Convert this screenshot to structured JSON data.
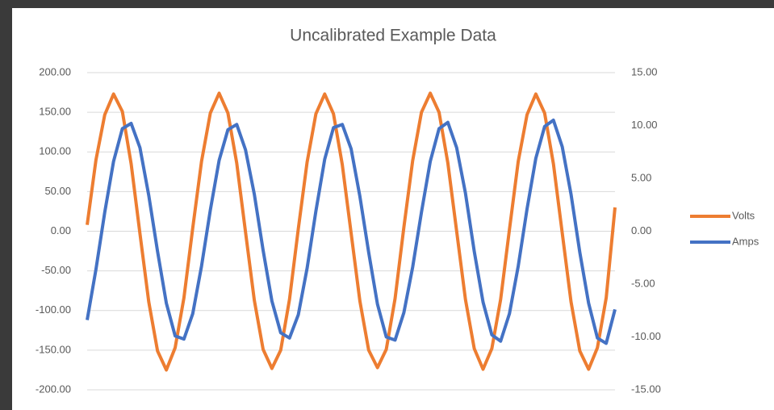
{
  "chart_data": {
    "type": "line",
    "title": "Uncalibrated Example Data",
    "series": [
      {
        "name": "Volts",
        "color": "#ed7d31",
        "axis": "y",
        "values": [
          8,
          90,
          147,
          173,
          151,
          85,
          -3,
          -89,
          -151,
          -175,
          -147,
          -84,
          4,
          88,
          149,
          174,
          149,
          86,
          -1,
          -87,
          -149,
          -173,
          -150,
          -86,
          3,
          87,
          148,
          173,
          148,
          84,
          -2,
          -88,
          -150,
          -172,
          -149,
          -85,
          5,
          89,
          150,
          174,
          150,
          86,
          0,
          -86,
          -148,
          -174,
          -148,
          -86,
          2,
          88,
          147,
          173,
          149,
          85,
          -2,
          -89,
          -151,
          -174,
          -147,
          -84,
          30
        ]
      },
      {
        "name": "Amps",
        "color": "#4472c4",
        "axis": "y2",
        "values": [
          -8.4,
          -3.6,
          1.8,
          6.6,
          9.7,
          10.2,
          7.9,
          3.4,
          -1.9,
          -6.8,
          -9.9,
          -10.2,
          -7.8,
          -3.3,
          2.0,
          6.7,
          9.6,
          10.1,
          7.7,
          3.5,
          -1.8,
          -6.6,
          -9.6,
          -10.1,
          -7.9,
          -3.5,
          1.9,
          6.8,
          9.8,
          10.1,
          7.8,
          3.3,
          -2.0,
          -6.9,
          -10.0,
          -10.3,
          -7.7,
          -3.4,
          1.8,
          6.6,
          9.7,
          10.3,
          7.9,
          3.6,
          -1.9,
          -6.7,
          -9.8,
          -10.4,
          -7.8,
          -3.3,
          2.1,
          6.9,
          9.9,
          10.5,
          8.0,
          3.5,
          -2.0,
          -6.8,
          -10.1,
          -10.6,
          -7.4
        ]
      }
    ],
    "ylim": [
      -200,
      200
    ],
    "yticks": [
      {
        "value": -200,
        "label": "-200.00"
      },
      {
        "value": -150,
        "label": "-150.00"
      },
      {
        "value": -100,
        "label": "-100.00"
      },
      {
        "value": -50,
        "label": "-50.00"
      },
      {
        "value": 0,
        "label": "0.00"
      },
      {
        "value": 50,
        "label": "50.00"
      },
      {
        "value": 100,
        "label": "100.00"
      },
      {
        "value": 150,
        "label": "150.00"
      },
      {
        "value": 200,
        "label": "200.00"
      }
    ],
    "y2lim": [
      -15,
      15
    ],
    "y2ticks": [
      {
        "value": -15,
        "label": "-15.00"
      },
      {
        "value": -10,
        "label": "-10.00"
      },
      {
        "value": -5,
        "label": "-5.00"
      },
      {
        "value": 0,
        "label": "0.00"
      },
      {
        "value": 5,
        "label": "5.00"
      },
      {
        "value": 10,
        "label": "10.00"
      },
      {
        "value": 15,
        "label": "15.00"
      }
    ],
    "grid": true,
    "legend": "right"
  }
}
